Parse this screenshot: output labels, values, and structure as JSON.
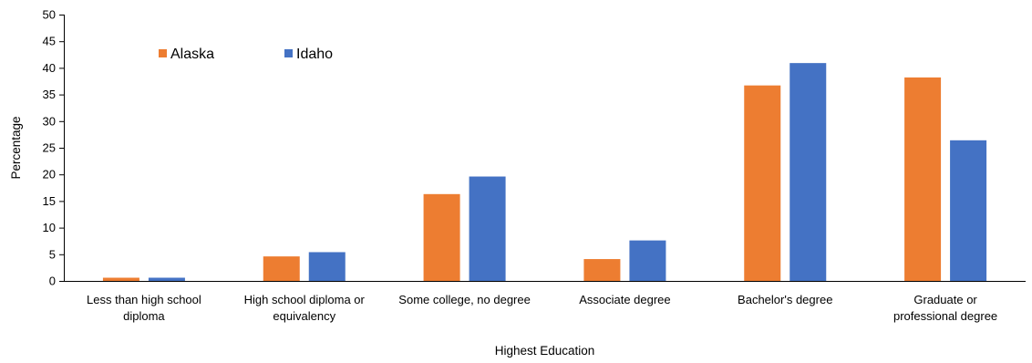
{
  "chart_data": {
    "type": "bar",
    "title": "",
    "xlabel": "Highest Education",
    "ylabel": "Percentage",
    "ylim": [
      0,
      50
    ],
    "yticks": [
      0,
      5,
      10,
      15,
      20,
      25,
      30,
      35,
      40,
      45,
      50
    ],
    "grid": false,
    "legend_position": "top-left",
    "categories": [
      [
        "Less than high school",
        "diploma"
      ],
      [
        "High school diploma or",
        "equivalency"
      ],
      [
        "Some college, no degree"
      ],
      [
        "Associate degree"
      ],
      [
        "Bachelor's degree"
      ],
      [
        "Graduate or",
        "professional degree"
      ]
    ],
    "series": [
      {
        "name": "Alaska",
        "color": "#ED7D31",
        "values": [
          0.6,
          4.6,
          16.3,
          4.1,
          36.7,
          38.2
        ]
      },
      {
        "name": "Idaho",
        "color": "#4472C4",
        "values": [
          0.6,
          5.4,
          19.6,
          7.6,
          40.9,
          26.4
        ]
      }
    ]
  }
}
